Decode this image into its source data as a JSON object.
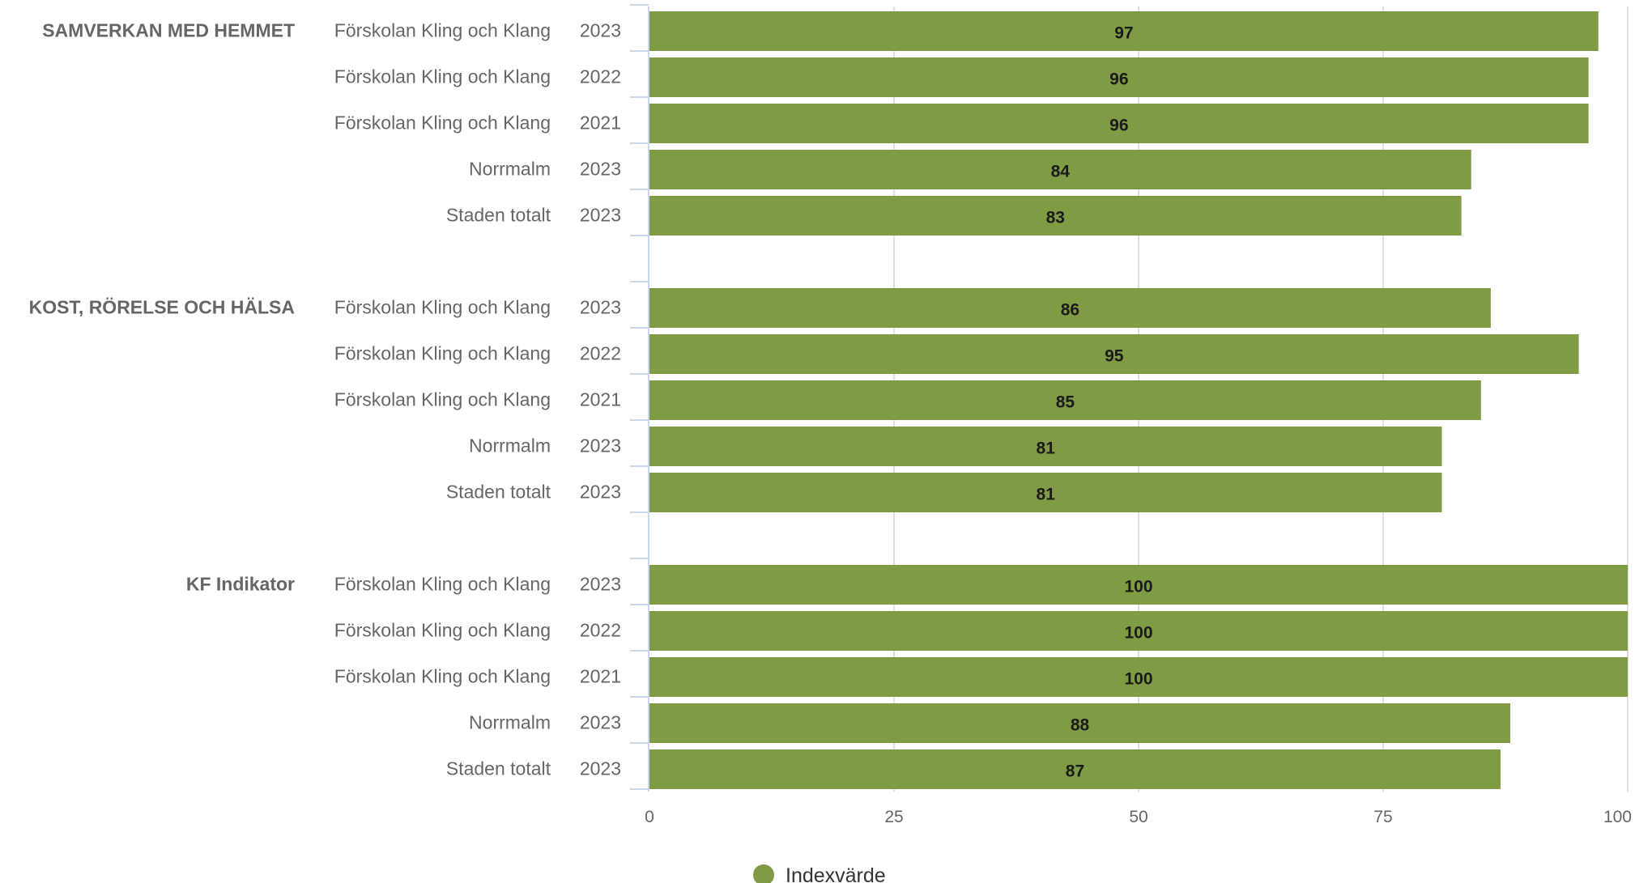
{
  "chart_data": {
    "type": "bar",
    "orientation": "horizontal",
    "xlim": [
      0,
      100
    ],
    "x_ticks": [
      "0",
      "25",
      "50",
      "75",
      "100"
    ],
    "grid": true,
    "bar_color": "#7f9c45",
    "series": [
      {
        "name": "Indexvärde"
      }
    ],
    "legend": {
      "position": "bottom-center",
      "label": "Indexvärde"
    },
    "groups": [
      {
        "category": "SAMVERKAN MED HEMMET",
        "rows": [
          {
            "name": "Förskolan Kling och Klang",
            "year": "2023",
            "value": 97
          },
          {
            "name": "Förskolan Kling och Klang",
            "year": "2022",
            "value": 96
          },
          {
            "name": "Förskolan Kling och Klang",
            "year": "2021",
            "value": 96
          },
          {
            "name": "Norrmalm",
            "year": "2023",
            "value": 84
          },
          {
            "name": "Staden totalt",
            "year": "2023",
            "value": 83
          }
        ]
      },
      {
        "category": "KOST, RÖRELSE OCH HÄLSA",
        "rows": [
          {
            "name": "Förskolan Kling och Klang",
            "year": "2023",
            "value": 86
          },
          {
            "name": "Förskolan Kling och Klang",
            "year": "2022",
            "value": 95
          },
          {
            "name": "Förskolan Kling och Klang",
            "year": "2021",
            "value": 85
          },
          {
            "name": "Norrmalm",
            "year": "2023",
            "value": 81
          },
          {
            "name": "Staden totalt",
            "year": "2023",
            "value": 81
          }
        ]
      },
      {
        "category": "KF Indikator",
        "rows": [
          {
            "name": "Förskolan Kling och Klang",
            "year": "2023",
            "value": 100
          },
          {
            "name": "Förskolan Kling och Klang",
            "year": "2022",
            "value": 100
          },
          {
            "name": "Förskolan Kling och Klang",
            "year": "2021",
            "value": 100
          },
          {
            "name": "Norrmalm",
            "year": "2023",
            "value": 88
          },
          {
            "name": "Staden totalt",
            "year": "2023",
            "value": 87
          }
        ]
      }
    ]
  }
}
